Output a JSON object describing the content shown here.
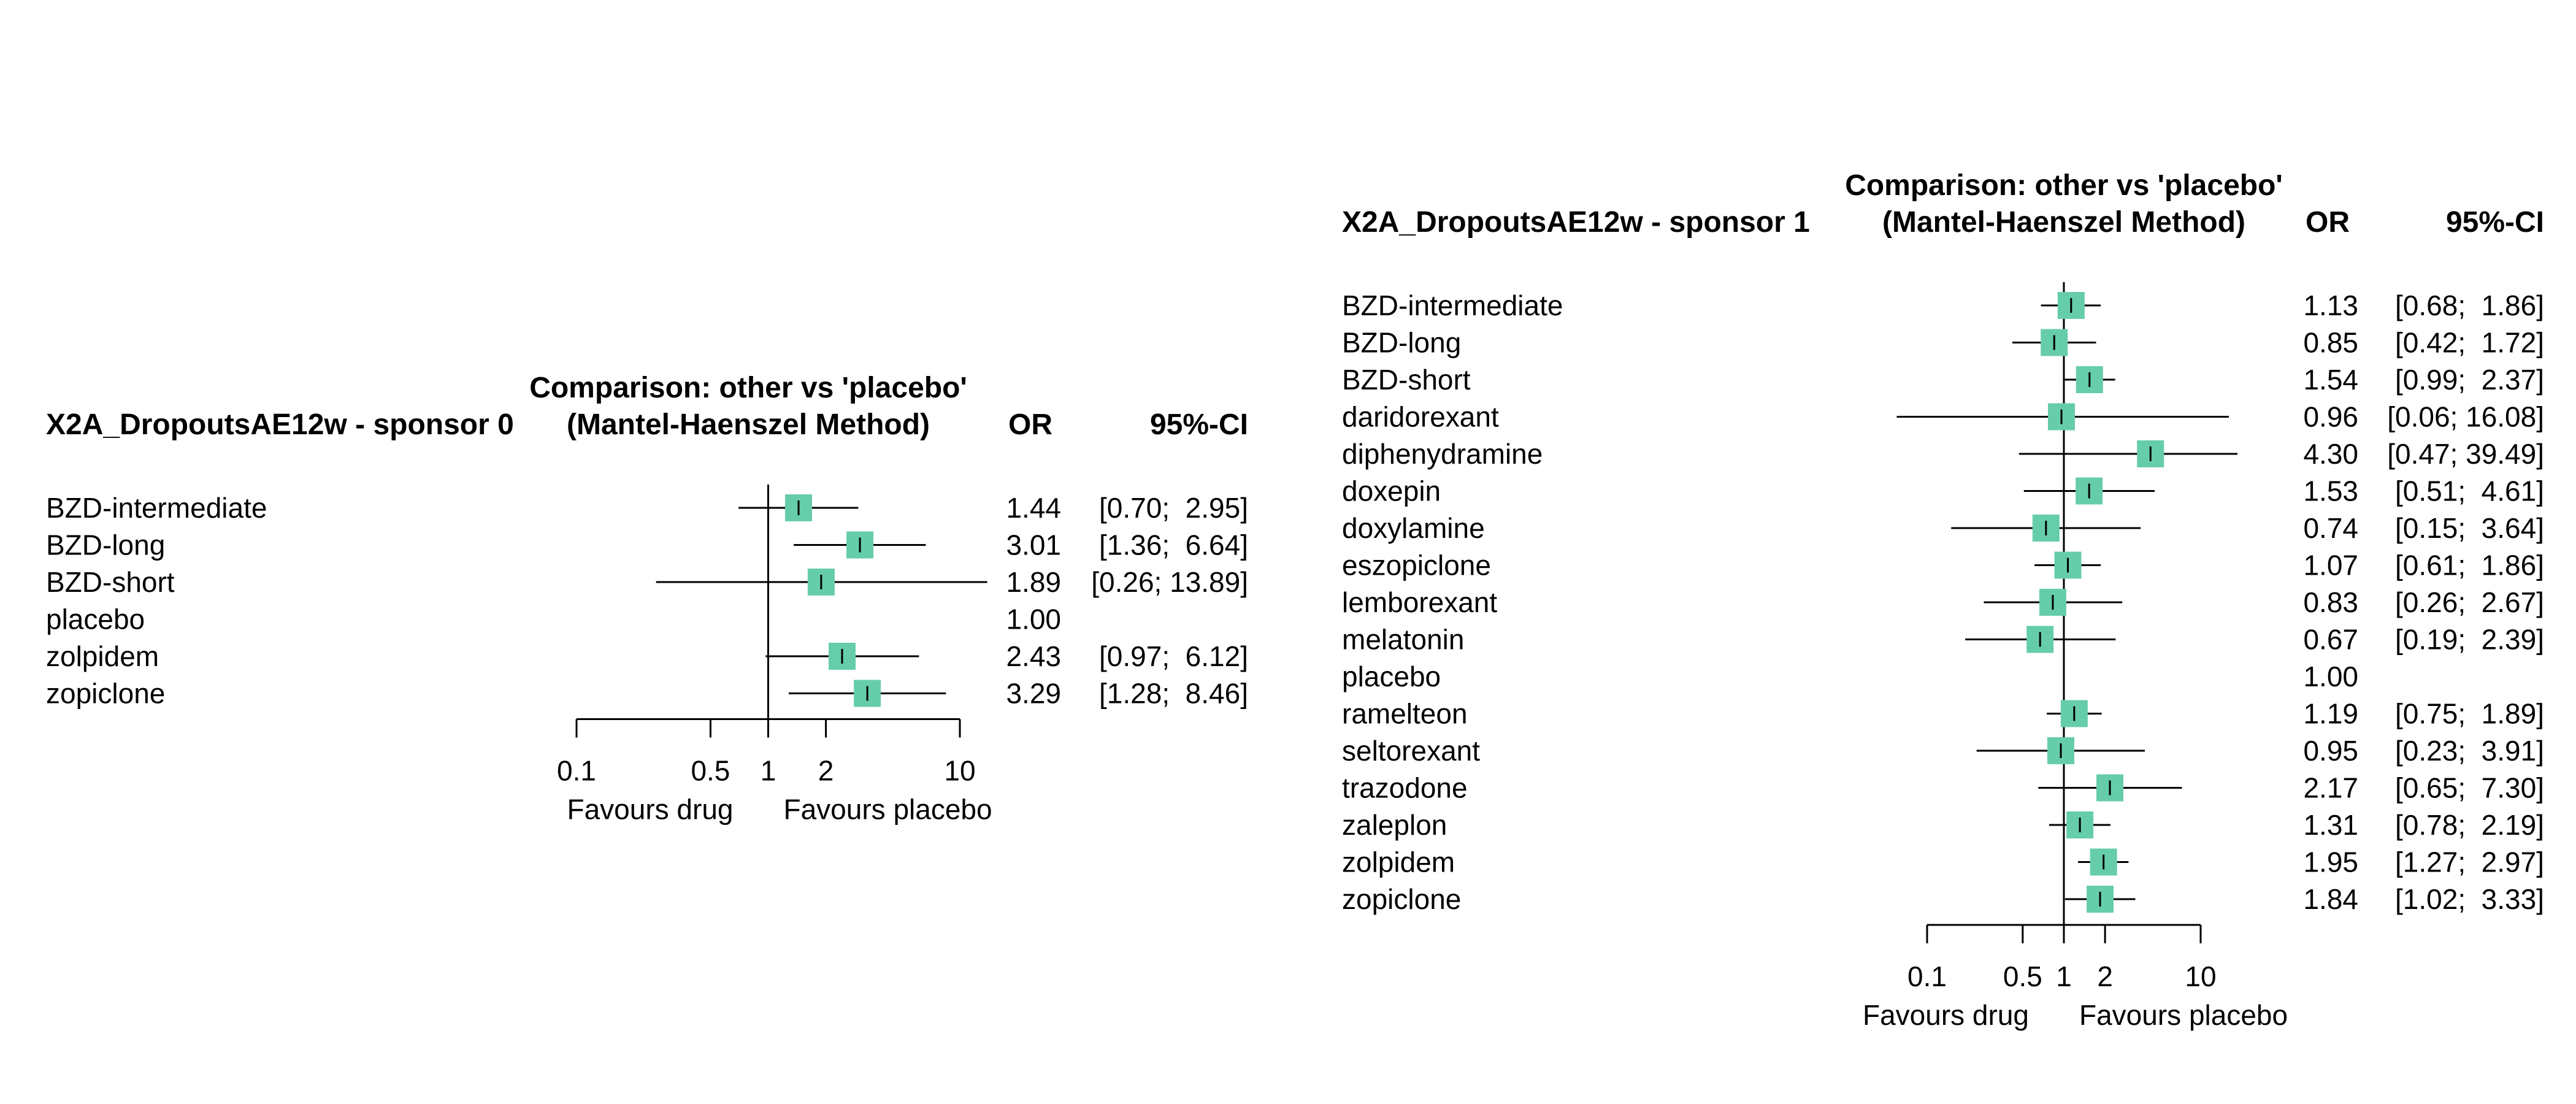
{
  "chart_data": [
    {
      "type": "forest",
      "outcome_label": "X2A_DropoutsAE12w - sponsor 0",
      "comparison_line1": "Comparison: other vs 'placebo'",
      "comparison_line2": "(Mantel-Haenszel Method)",
      "col_or": "OR",
      "col_ci": "95%-CI",
      "x_scale": "log",
      "xlim": [
        0.1,
        10
      ],
      "x_ticks": [
        0.1,
        0.5,
        1,
        2,
        10
      ],
      "x_tick_labels": [
        "0.1",
        "0.5",
        "1",
        "2",
        "10"
      ],
      "favours_left": "Favours drug",
      "favours_right": "Favours placebo",
      "marker_color": "#66CDAA",
      "rows": [
        {
          "label": "BZD-intermediate",
          "or": 1.44,
          "lo": 0.7,
          "hi": 2.95,
          "or_text": "1.44",
          "ci_text": "[0.70;  2.95]"
        },
        {
          "label": "BZD-long",
          "or": 3.01,
          "lo": 1.36,
          "hi": 6.64,
          "or_text": "3.01",
          "ci_text": "[1.36;  6.64]"
        },
        {
          "label": "BZD-short",
          "or": 1.89,
          "lo": 0.26,
          "hi": 13.89,
          "or_text": "1.89",
          "ci_text": "[0.26; 13.89]"
        },
        {
          "label": "placebo",
          "or": 1.0,
          "lo": null,
          "hi": null,
          "or_text": "1.00",
          "ci_text": ""
        },
        {
          "label": "zolpidem",
          "or": 2.43,
          "lo": 0.97,
          "hi": 6.12,
          "or_text": "2.43",
          "ci_text": "[0.97;  6.12]"
        },
        {
          "label": "zopiclone",
          "or": 3.29,
          "lo": 1.28,
          "hi": 8.46,
          "or_text": "3.29",
          "ci_text": "[1.28;  8.46]"
        }
      ]
    },
    {
      "type": "forest",
      "outcome_label": "X2A_DropoutsAE12w - sponsor 1",
      "comparison_line1": "Comparison: other vs 'placebo'",
      "comparison_line2": "(Mantel-Haenszel Method)",
      "col_or": "OR",
      "col_ci": "95%-CI",
      "x_scale": "log",
      "xlim": [
        0.1,
        10
      ],
      "x_ticks": [
        0.1,
        0.5,
        1,
        2,
        10
      ],
      "x_tick_labels": [
        "0.1",
        "0.5",
        "1",
        "2",
        "10"
      ],
      "favours_left": "Favours drug",
      "favours_right": "Favours placebo",
      "marker_color": "#66CDAA",
      "rows": [
        {
          "label": "BZD-intermediate",
          "or": 1.13,
          "lo": 0.68,
          "hi": 1.86,
          "or_text": "1.13",
          "ci_text": "[0.68;  1.86]"
        },
        {
          "label": "BZD-long",
          "or": 0.85,
          "lo": 0.42,
          "hi": 1.72,
          "or_text": "0.85",
          "ci_text": "[0.42;  1.72]"
        },
        {
          "label": "BZD-short",
          "or": 1.54,
          "lo": 0.99,
          "hi": 2.37,
          "or_text": "1.54",
          "ci_text": "[0.99;  2.37]"
        },
        {
          "label": "daridorexant",
          "or": 0.96,
          "lo": 0.06,
          "hi": 16.08,
          "or_text": "0.96",
          "ci_text": "[0.06; 16.08]"
        },
        {
          "label": "diphenydramine",
          "or": 4.3,
          "lo": 0.47,
          "hi": 39.49,
          "or_text": "4.30",
          "ci_text": "[0.47; 39.49]"
        },
        {
          "label": "doxepin",
          "or": 1.53,
          "lo": 0.51,
          "hi": 4.61,
          "or_text": "1.53",
          "ci_text": "[0.51;  4.61]"
        },
        {
          "label": "doxylamine",
          "or": 0.74,
          "lo": 0.15,
          "hi": 3.64,
          "or_text": "0.74",
          "ci_text": "[0.15;  3.64]"
        },
        {
          "label": "eszopiclone",
          "or": 1.07,
          "lo": 0.61,
          "hi": 1.86,
          "or_text": "1.07",
          "ci_text": "[0.61;  1.86]"
        },
        {
          "label": "lemborexant",
          "or": 0.83,
          "lo": 0.26,
          "hi": 2.67,
          "or_text": "0.83",
          "ci_text": "[0.26;  2.67]"
        },
        {
          "label": "melatonin",
          "or": 0.67,
          "lo": 0.19,
          "hi": 2.39,
          "or_text": "0.67",
          "ci_text": "[0.19;  2.39]"
        },
        {
          "label": "placebo",
          "or": 1.0,
          "lo": null,
          "hi": null,
          "or_text": "1.00",
          "ci_text": ""
        },
        {
          "label": "ramelteon",
          "or": 1.19,
          "lo": 0.75,
          "hi": 1.89,
          "or_text": "1.19",
          "ci_text": "[0.75;  1.89]"
        },
        {
          "label": "seltorexant",
          "or": 0.95,
          "lo": 0.23,
          "hi": 3.91,
          "or_text": "0.95",
          "ci_text": "[0.23;  3.91]"
        },
        {
          "label": "trazodone",
          "or": 2.17,
          "lo": 0.65,
          "hi": 7.3,
          "or_text": "2.17",
          "ci_text": "[0.65;  7.30]"
        },
        {
          "label": "zaleplon",
          "or": 1.31,
          "lo": 0.78,
          "hi": 2.19,
          "or_text": "1.31",
          "ci_text": "[0.78;  2.19]"
        },
        {
          "label": "zolpidem",
          "or": 1.95,
          "lo": 1.27,
          "hi": 2.97,
          "or_text": "1.95",
          "ci_text": "[1.27;  2.97]"
        },
        {
          "label": "zopiclone",
          "or": 1.84,
          "lo": 1.02,
          "hi": 3.33,
          "or_text": "1.84",
          "ci_text": "[1.02;  3.33]"
        }
      ]
    }
  ]
}
